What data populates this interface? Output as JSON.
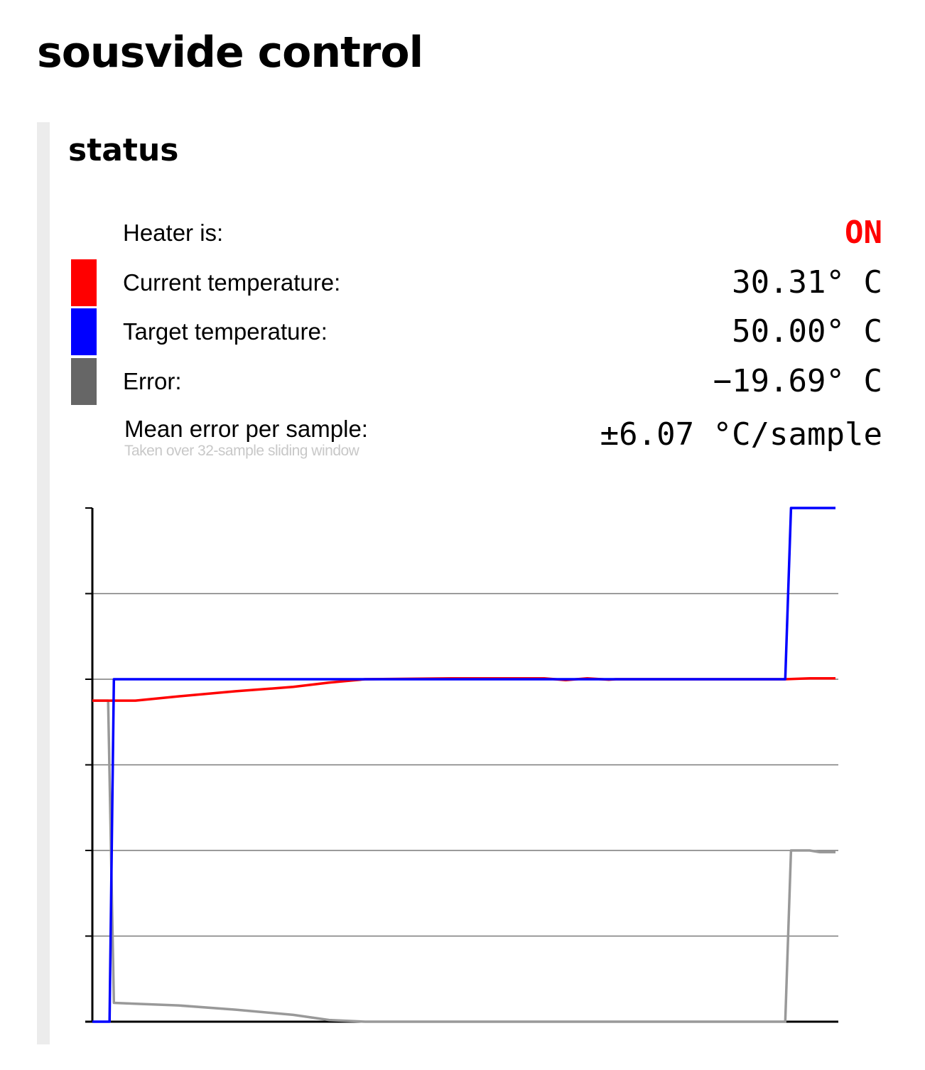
{
  "page": {
    "title": "sousvide control"
  },
  "status": {
    "title": "status",
    "heater": {
      "label": "Heater is:",
      "value": "ON",
      "color": "#ff0000"
    },
    "current": {
      "label": "Current temperature:",
      "value": "30.31° C",
      "color": "#ff0000"
    },
    "target": {
      "label": "Target temperature:",
      "value": "50.00° C",
      "color": "#0000ff"
    },
    "error": {
      "label": "Error:",
      "value": "−19.69° C",
      "color": "#666666"
    },
    "mean_error": {
      "label": "Mean error per sample:",
      "note": "Taken over 32-sample sliding window",
      "value": "±6.07 °C/sample"
    }
  },
  "chart_data": {
    "type": "line",
    "grid": "horizontal",
    "ylim": [
      -10,
      50
    ],
    "yticks": [
      -10,
      0,
      10,
      20,
      30,
      40,
      50
    ],
    "xlim": [
      0,
      520
    ],
    "series": [
      {
        "color": "#ff0000",
        "points": [
          [
            0,
            27.5
          ],
          [
            15,
            27.5
          ],
          [
            30,
            27.5
          ],
          [
            60,
            28.0
          ],
          [
            100,
            28.6
          ],
          [
            140,
            29.1
          ],
          [
            165,
            29.6
          ],
          [
            190,
            30.0
          ],
          [
            250,
            30.1
          ],
          [
            250,
            30.1
          ],
          [
            315,
            30.1
          ],
          [
            330,
            29.9
          ],
          [
            345,
            30.1
          ],
          [
            360,
            29.95
          ],
          [
            365,
            30.0
          ],
          [
            483,
            30.0
          ],
          [
            500,
            30.1
          ],
          [
            518,
            30.1
          ]
        ]
      },
      {
        "color": "#0000ff",
        "points": [
          [
            0,
            -10
          ],
          [
            12,
            -10
          ],
          [
            15,
            30
          ],
          [
            483,
            30
          ],
          [
            487,
            50
          ],
          [
            518,
            50
          ]
        ]
      },
      {
        "color": "#999999",
        "points": [
          [
            0,
            27.5
          ],
          [
            11,
            27.5
          ],
          [
            15,
            -7.8
          ],
          [
            30,
            -7.9
          ],
          [
            60,
            -8.1
          ],
          [
            100,
            -8.6
          ],
          [
            140,
            -9.2
          ],
          [
            165,
            -9.8
          ],
          [
            190,
            -10
          ],
          [
            483,
            -10
          ],
          [
            487,
            10
          ],
          [
            500,
            10
          ],
          [
            507,
            9.8
          ],
          [
            518,
            9.8
          ]
        ]
      }
    ]
  }
}
